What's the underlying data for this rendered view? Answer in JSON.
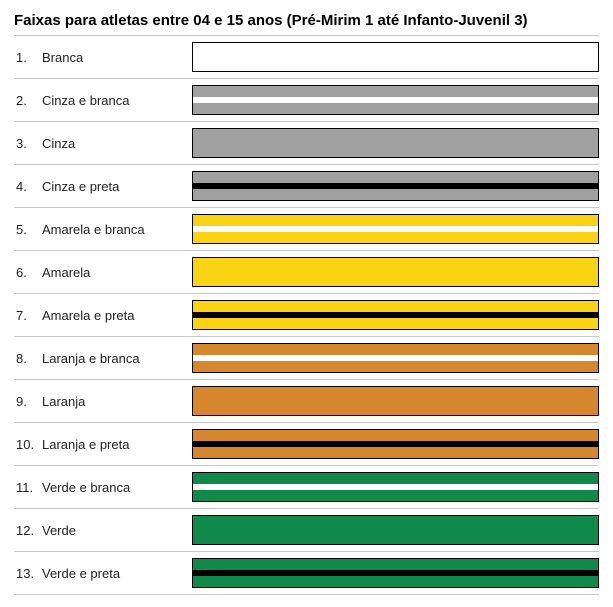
{
  "title": "Faixas para atletas entre 04 e 15 anos (Pré-Mirim 1 até Infanto-Juvenil 3)",
  "belt_height": 30,
  "stripe_height": 6,
  "row_border_color": "#c9c9c9",
  "belt_border_color": "#000000",
  "background_color": "#ffffff",
  "font_family": "Helvetica Neue, Helvetica, Arial, sans-serif",
  "title_fontsize": 15,
  "label_fontsize": 13,
  "colors": {
    "branca": "#ffffff",
    "cinza": "#a0a0a0",
    "amarela": "#f9d314",
    "laranja": "#d6862d",
    "verde": "#11894a",
    "preta": "#000000"
  },
  "belts": [
    {
      "num": "1.",
      "label": "Branca",
      "base": "#ffffff",
      "stripe": null
    },
    {
      "num": "2.",
      "label": "Cinza e branca",
      "base": "#a0a0a0",
      "stripe": "#ffffff"
    },
    {
      "num": "3.",
      "label": "Cinza",
      "base": "#a0a0a0",
      "stripe": null
    },
    {
      "num": "4.",
      "label": "Cinza e preta",
      "base": "#a0a0a0",
      "stripe": "#000000"
    },
    {
      "num": "5.",
      "label": "Amarela e branca",
      "base": "#f9d314",
      "stripe": "#ffffff"
    },
    {
      "num": "6.",
      "label": "Amarela",
      "base": "#f9d314",
      "stripe": null
    },
    {
      "num": "7.",
      "label": "Amarela e preta",
      "base": "#f9d314",
      "stripe": "#000000"
    },
    {
      "num": "8.",
      "label": "Laranja e branca",
      "base": "#d6862d",
      "stripe": "#ffffff"
    },
    {
      "num": "9.",
      "label": "Laranja",
      "base": "#d6862d",
      "stripe": null
    },
    {
      "num": "10.",
      "label": "Laranja e preta",
      "base": "#d6862d",
      "stripe": "#000000"
    },
    {
      "num": "11.",
      "label": "Verde e branca",
      "base": "#11894a",
      "stripe": "#ffffff"
    },
    {
      "num": "12.",
      "label": "Verde",
      "base": "#11894a",
      "stripe": null
    },
    {
      "num": "13.",
      "label": "Verde e preta",
      "base": "#11894a",
      "stripe": "#000000"
    }
  ]
}
